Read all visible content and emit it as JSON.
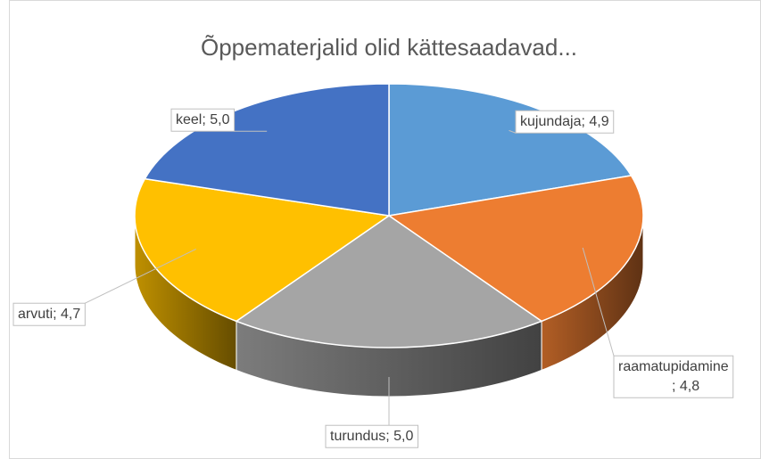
{
  "chart_data": {
    "type": "pie3d",
    "title": "Õppematerjalid olid kättesaadavad...",
    "categories": [
      "kujundaja",
      "raamatupidamine",
      "turundus",
      "arvuti",
      "keel"
    ],
    "values": [
      4.9,
      4.8,
      5.0,
      4.7,
      5.0
    ],
    "value_labels": [
      "4,9",
      "4,8",
      "5,0",
      "4,7",
      "5,0"
    ],
    "colors": [
      "#5b9bd5",
      "#ed7d31",
      "#a5a5a5",
      "#ffc000",
      "#4472c4"
    ]
  }
}
